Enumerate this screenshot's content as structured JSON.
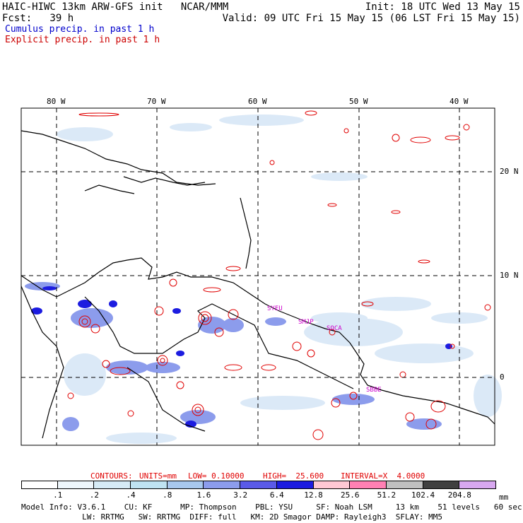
{
  "header": {
    "model_line": "HAIC-HIWC 13km ARW-GFS init   NCAR/MMM",
    "fcst_line": "Fcst:   39 h",
    "init_line": "Init: 18 UTC Wed 13 May 15",
    "valid_line": "Valid: 09 UTC Fri 15 May 15 (06 LST Fri 15 May 15)",
    "cumulus_label": "Cumulus precip. in past 1 h",
    "explicit_label": "Explicit precip. in past 1 h",
    "cumulus_color": "#0000cc",
    "explicit_color": "#cc0000"
  },
  "map": {
    "lon_labels": [
      "80 W",
      "70 W",
      "60 W",
      "50 W",
      "40 W"
    ],
    "lat_labels": [
      "20 N",
      "10 N",
      "0"
    ],
    "station_labels": [
      "SYEU",
      "SMJP",
      "SOCA",
      "SBBE"
    ],
    "station_color": "#cc00cc",
    "contour_color": "#e00000",
    "coast_color": "#000000",
    "grid": true
  },
  "contour_info": {
    "contours": "CONTOURS:",
    "units": "UNITS=mm",
    "low": "LOW= 0.10000",
    "high": "HIGH=  25.600",
    "interval": "INTERVAL=X  4.0000"
  },
  "colorbar": {
    "labels": [
      ".1",
      ".2",
      ".4",
      ".8",
      "1.6",
      "3.2",
      "6.4",
      "12.8",
      "25.6",
      "51.2",
      "102.4",
      "204.8"
    ],
    "colors": [
      "#ffffff",
      "#eef6fb",
      "#d6ebf6",
      "#bfe3f2",
      "#a8c8ee",
      "#8c9cec",
      "#5a5ae8",
      "#1c1ce0",
      "#ffc8d4",
      "#ff80b4",
      "#c0c0c0",
      "#404040",
      "#d8a8f0"
    ],
    "unit": "mm"
  },
  "model_info": {
    "line1": "Model Info: V3.6.1    CU: KF      MP: Thompson    PBL: YSU     SF: Noah LSM     13 km    51 levels   60 sec",
    "line2": "             LW: RRTMG   SW: RRTMG  DIFF: full   KM: 2D Smagor DAMP: Rayleigh3  SFLAY: MM5"
  }
}
